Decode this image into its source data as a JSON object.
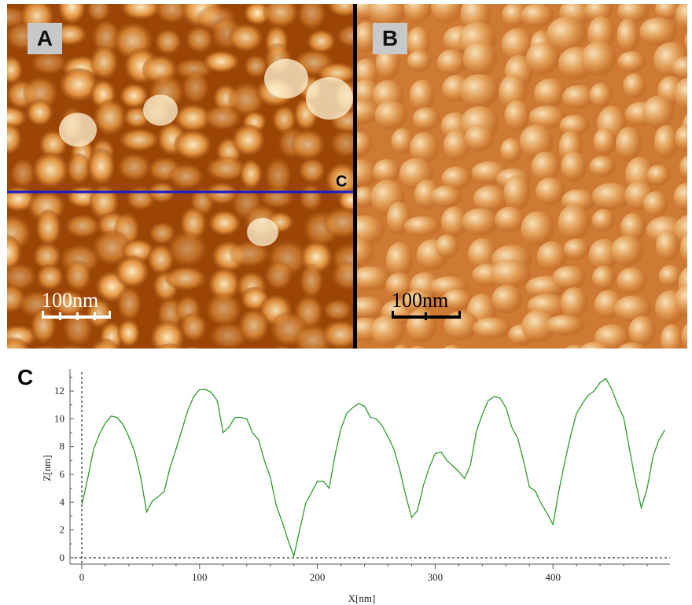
{
  "panels": {
    "a_label": "A",
    "b_label": "B",
    "profile_marker": "C",
    "scale_a": "100nm",
    "scale_b": "100nm",
    "colors": {
      "afm_dark": "#7a2f02",
      "afm_mid": "#c8661a",
      "afm_light": "#fff0c8",
      "profile_line": "#1a1acc"
    }
  },
  "figure_c_label": "C",
  "chart_data": {
    "type": "line",
    "xlabel": "X[nm]",
    "ylabel": "Z[nm]",
    "xlim": [
      -5,
      500
    ],
    "ylim": [
      -0.8,
      13.6
    ],
    "xticks": [
      0,
      100,
      200,
      300,
      400
    ],
    "yticks": [
      0,
      2,
      4,
      6,
      8,
      10,
      12
    ],
    "grid": false,
    "series": [
      {
        "color": "#2e9b2e",
        "x": [
          0,
          5,
          10,
          15,
          20,
          25,
          30,
          35,
          40,
          45,
          50,
          55,
          60,
          65,
          70,
          75,
          80,
          85,
          90,
          95,
          100,
          105,
          110,
          115,
          120,
          125,
          130,
          135,
          140,
          145,
          150,
          155,
          160,
          165,
          170,
          175,
          180,
          185,
          190,
          195,
          200,
          205,
          210,
          215,
          220,
          225,
          230,
          235,
          240,
          245,
          250,
          255,
          260,
          265,
          270,
          275,
          280,
          285,
          290,
          295,
          300,
          305,
          310,
          315,
          320,
          325,
          330,
          335,
          340,
          345,
          350,
          355,
          360,
          365,
          370,
          375,
          380,
          385,
          390,
          395,
          400,
          405,
          410,
          415,
          420,
          425,
          430,
          435,
          440,
          445,
          450,
          455,
          460,
          465,
          470,
          475,
          480,
          485,
          490,
          495
        ],
        "y": [
          3.8,
          5.7,
          7.8,
          8.9,
          9.7,
          10.2,
          10.1,
          9.6,
          8.7,
          7.6,
          5.8,
          3.3,
          4.1,
          4.4,
          4.8,
          6.5,
          7.8,
          9.2,
          10.6,
          11.6,
          12.1,
          12.1,
          11.9,
          11.3,
          9.0,
          9.4,
          10.1,
          10.1,
          10.0,
          9.0,
          8.5,
          7.0,
          5.8,
          3.8,
          2.6,
          1.3,
          0.1,
          2.0,
          3.9,
          4.7,
          5.5,
          5.5,
          5.0,
          7.4,
          9.3,
          10.4,
          10.8,
          11.1,
          10.9,
          10.1,
          10.0,
          9.5,
          8.7,
          7.8,
          6.3,
          4.5,
          2.9,
          3.4,
          5.2,
          6.5,
          7.5,
          7.6,
          7.0,
          6.6,
          6.2,
          5.7,
          6.7,
          9.1,
          10.3,
          11.3,
          11.6,
          11.5,
          10.8,
          9.4,
          8.6,
          7.0,
          5.1,
          4.8,
          3.9,
          3.2,
          2.4,
          4.8,
          6.9,
          8.8,
          10.4,
          11.1,
          11.7,
          12.0,
          12.6,
          12.9,
          12.1,
          11.0,
          10.1,
          7.8,
          5.5,
          3.6,
          5.0,
          7.3,
          8.5,
          9.2
        ]
      }
    ]
  }
}
